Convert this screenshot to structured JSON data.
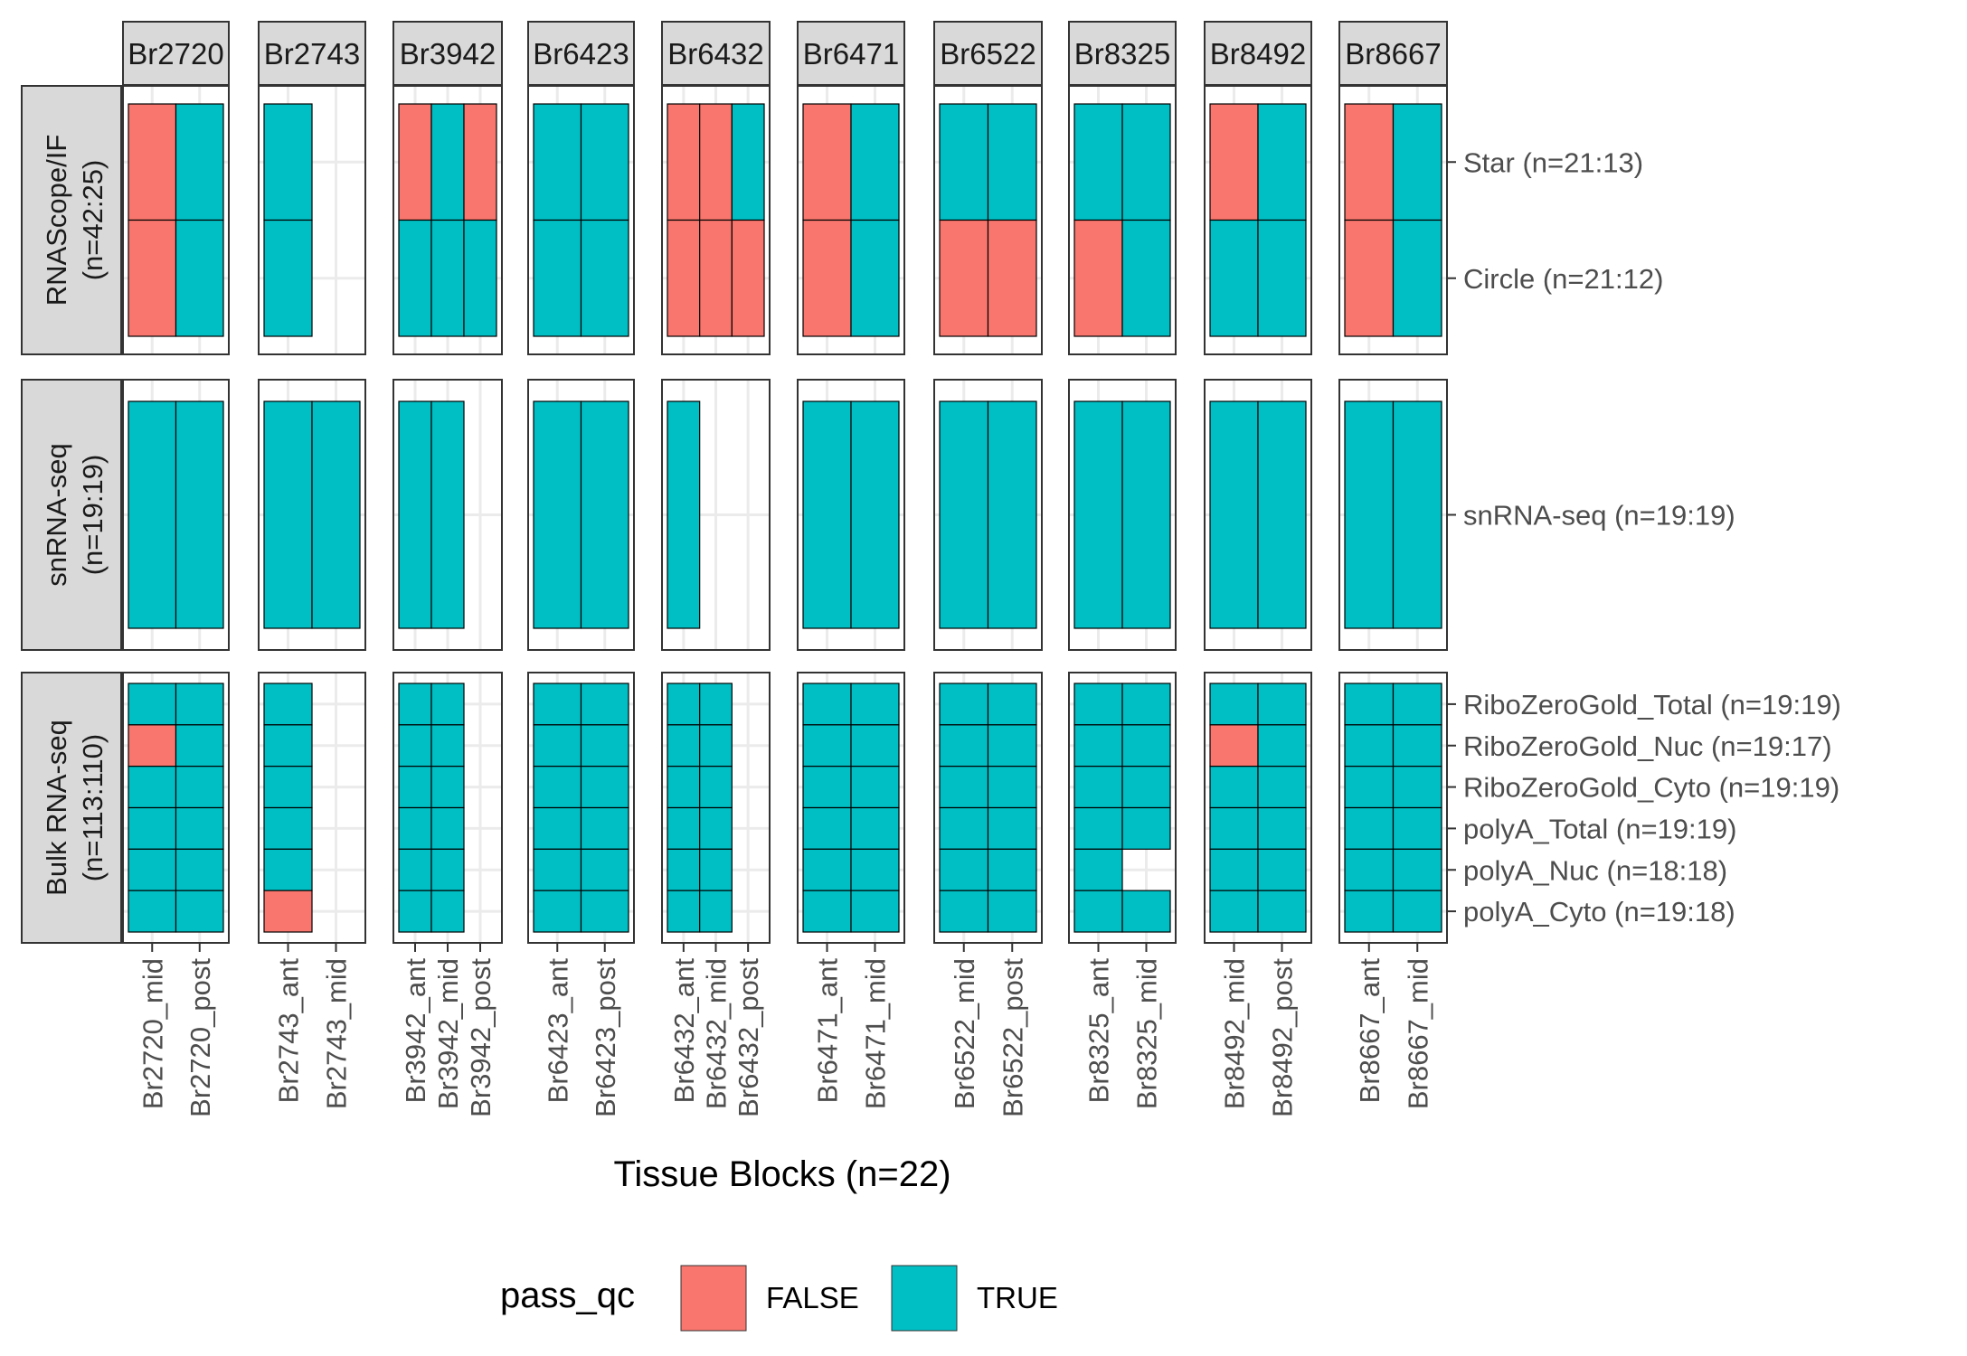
{
  "chart_data": {
    "type": "heatmap",
    "xlabel": "Tissue Blocks (n=22)",
    "legend": {
      "title": "pass_qc",
      "position": "bottom",
      "entries": [
        {
          "key": "FALSE",
          "label": "FALSE",
          "color": "#F8766D"
        },
        {
          "key": "TRUE",
          "label": "TRUE",
          "color": "#00BFC4"
        }
      ]
    },
    "colors": {
      "FALSE": "#F8766D",
      "TRUE": "#00BFC4",
      "grid": "#EBEBEB",
      "strip_bg": "#D9D9D9",
      "border": "#333333"
    },
    "col_facets": [
      {
        "label": "Br2720",
        "blocks": [
          "Br2720_mid",
          "Br2720_post"
        ]
      },
      {
        "label": "Br2743",
        "blocks": [
          "Br2743_ant",
          "Br2743_mid"
        ]
      },
      {
        "label": "Br3942",
        "blocks": [
          "Br3942_ant",
          "Br3942_mid",
          "Br3942_post"
        ]
      },
      {
        "label": "Br6423",
        "blocks": [
          "Br6423_ant",
          "Br6423_post"
        ]
      },
      {
        "label": "Br6432",
        "blocks": [
          "Br6432_ant",
          "Br6432_mid",
          "Br6432_post"
        ]
      },
      {
        "label": "Br6471",
        "blocks": [
          "Br6471_ant",
          "Br6471_mid"
        ]
      },
      {
        "label": "Br6522",
        "blocks": [
          "Br6522_mid",
          "Br6522_post"
        ]
      },
      {
        "label": "Br8325",
        "blocks": [
          "Br8325_ant",
          "Br8325_mid"
        ]
      },
      {
        "label": "Br8492",
        "blocks": [
          "Br8492_mid",
          "Br8492_post"
        ]
      },
      {
        "label": "Br8667",
        "blocks": [
          "Br8667_ant",
          "Br8667_mid"
        ]
      }
    ],
    "row_facets": [
      {
        "label_lines": [
          "RNAScope/IF",
          "(n=42:25)"
        ],
        "rows": [
          "Star (n=21:13)",
          "Circle (n=21:12)"
        ],
        "cells": [
          [
            [
              "F",
              "F"
            ],
            [
              "T",
              "T"
            ]
          ],
          [
            [
              "T",
              "T"
            ],
            [
              "",
              ""
            ]
          ],
          [
            [
              "F",
              "T"
            ],
            [
              "T",
              "T"
            ],
            [
              "F",
              "T"
            ]
          ],
          [
            [
              "T",
              "T"
            ],
            [
              "T",
              "T"
            ]
          ],
          [
            [
              "F",
              "F"
            ],
            [
              "F",
              "F"
            ],
            [
              "T",
              "F"
            ]
          ],
          [
            [
              "F",
              "F"
            ],
            [
              "T",
              "T"
            ]
          ],
          [
            [
              "T",
              "F"
            ],
            [
              "T",
              "F"
            ]
          ],
          [
            [
              "T",
              "F"
            ],
            [
              "T",
              "T"
            ]
          ],
          [
            [
              "F",
              "T"
            ],
            [
              "T",
              "T"
            ]
          ],
          [
            [
              "F",
              "F"
            ],
            [
              "T",
              "T"
            ]
          ]
        ]
      },
      {
        "label_lines": [
          "snRNA-seq",
          "(n=19:19)"
        ],
        "rows": [
          "snRNA-seq (n=19:19)"
        ],
        "cells": [
          [
            [
              "T"
            ],
            [
              "T"
            ]
          ],
          [
            [
              "T"
            ],
            [
              "T"
            ]
          ],
          [
            [
              "T"
            ],
            [
              "T"
            ],
            [
              ""
            ]
          ],
          [
            [
              "T"
            ],
            [
              "T"
            ]
          ],
          [
            [
              "T"
            ],
            [
              ""
            ],
            [
              ""
            ]
          ],
          [
            [
              "T"
            ],
            [
              "T"
            ]
          ],
          [
            [
              "T"
            ],
            [
              "T"
            ]
          ],
          [
            [
              "T"
            ],
            [
              "T"
            ]
          ],
          [
            [
              "T"
            ],
            [
              "T"
            ]
          ],
          [
            [
              "T"
            ],
            [
              "T"
            ]
          ]
        ]
      },
      {
        "label_lines": [
          "Bulk RNA-seq",
          "(n=113:110)"
        ],
        "rows": [
          "RiboZeroGold_Total (n=19:19)",
          "RiboZeroGold_Nuc (n=19:17)",
          "RiboZeroGold_Cyto (n=19:19)",
          "polyA_Total (n=19:19)",
          "polyA_Nuc (n=18:18)",
          "polyA_Cyto (n=19:18)"
        ],
        "cells": [
          [
            [
              "T",
              "F",
              "T",
              "T",
              "T",
              "T"
            ],
            [
              "T",
              "T",
              "T",
              "T",
              "T",
              "T"
            ]
          ],
          [
            [
              "T",
              "T",
              "T",
              "T",
              "T",
              "F"
            ],
            [
              "",
              "",
              "",
              "",
              "",
              ""
            ]
          ],
          [
            [
              "T",
              "T",
              "T",
              "T",
              "T",
              "T"
            ],
            [
              "T",
              "T",
              "T",
              "T",
              "T",
              "T"
            ],
            [
              "",
              "",
              "",
              "",
              "",
              ""
            ]
          ],
          [
            [
              "T",
              "T",
              "T",
              "T",
              "T",
              "T"
            ],
            [
              "T",
              "T",
              "T",
              "T",
              "T",
              "T"
            ]
          ],
          [
            [
              "T",
              "T",
              "T",
              "T",
              "T",
              "T"
            ],
            [
              "T",
              "T",
              "T",
              "T",
              "T",
              "T"
            ],
            [
              "",
              "",
              "",
              "",
              "",
              ""
            ]
          ],
          [
            [
              "T",
              "T",
              "T",
              "T",
              "T",
              "T"
            ],
            [
              "T",
              "T",
              "T",
              "T",
              "T",
              "T"
            ]
          ],
          [
            [
              "T",
              "T",
              "T",
              "T",
              "T",
              "T"
            ],
            [
              "T",
              "T",
              "T",
              "T",
              "T",
              "T"
            ]
          ],
          [
            [
              "T",
              "T",
              "T",
              "T",
              "T",
              "T"
            ],
            [
              "T",
              "T",
              "T",
              "T",
              "",
              "T"
            ]
          ],
          [
            [
              "T",
              "F",
              "T",
              "T",
              "T",
              "T"
            ],
            [
              "T",
              "T",
              "T",
              "T",
              "T",
              "T"
            ]
          ],
          [
            [
              "T",
              "T",
              "T",
              "T",
              "T",
              "T"
            ],
            [
              "T",
              "T",
              "T",
              "T",
              "T",
              "T"
            ]
          ]
        ]
      }
    ]
  }
}
